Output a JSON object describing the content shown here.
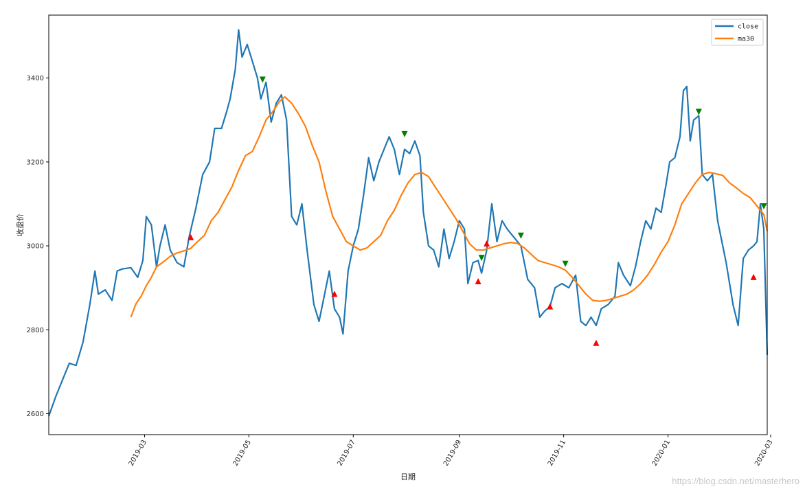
{
  "watermark": "https://blog.csdn.net/masterhero",
  "chart_data": {
    "type": "line",
    "xlabel": "日期",
    "ylabel": "收盘价",
    "xlim": [
      "2019-01-04",
      "2020-02-28"
    ],
    "ylim": [
      2550,
      3550
    ],
    "grid": false,
    "legend_position": "top-right",
    "x_ticks": [
      "2019-03",
      "2019-05",
      "2019-07",
      "2019-09",
      "2019-11",
      "2020-01",
      "2020-03"
    ],
    "y_ticks": [
      2600,
      2800,
      3000,
      3200,
      3400
    ],
    "colors": {
      "close": "#1f77b4",
      "ma30": "#ff7f0e",
      "buy": "#ff0000",
      "sell": "#008000"
    },
    "series": [
      {
        "name": "close",
        "points": [
          [
            "2019-01-04",
            2594
          ],
          [
            "2019-01-08",
            2640
          ],
          [
            "2019-01-12",
            2680
          ],
          [
            "2019-01-16",
            2720
          ],
          [
            "2019-01-20",
            2715
          ],
          [
            "2019-01-24",
            2770
          ],
          [
            "2019-01-28",
            2860
          ],
          [
            "2019-01-31",
            2940
          ],
          [
            "2019-02-02",
            2885
          ],
          [
            "2019-02-06",
            2895
          ],
          [
            "2019-02-10",
            2870
          ],
          [
            "2019-02-13",
            2940
          ],
          [
            "2019-02-16",
            2945
          ],
          [
            "2019-02-21",
            2948
          ],
          [
            "2019-02-25",
            2925
          ],
          [
            "2019-02-28",
            2965
          ],
          [
            "2019-03-02",
            3070
          ],
          [
            "2019-03-05",
            3050
          ],
          [
            "2019-03-08",
            2950
          ],
          [
            "2019-03-10",
            3000
          ],
          [
            "2019-03-13",
            3050
          ],
          [
            "2019-03-16",
            2990
          ],
          [
            "2019-03-20",
            2960
          ],
          [
            "2019-03-24",
            2950
          ],
          [
            "2019-03-27",
            3020
          ],
          [
            "2019-03-31",
            3090
          ],
          [
            "2019-04-04",
            3170
          ],
          [
            "2019-04-08",
            3200
          ],
          [
            "2019-04-11",
            3280
          ],
          [
            "2019-04-15",
            3280
          ],
          [
            "2019-04-18",
            3320
          ],
          [
            "2019-04-20",
            3350
          ],
          [
            "2019-04-23",
            3420
          ],
          [
            "2019-04-25",
            3515
          ],
          [
            "2019-04-27",
            3450
          ],
          [
            "2019-04-30",
            3480
          ],
          [
            "2019-05-03",
            3440
          ],
          [
            "2019-05-06",
            3400
          ],
          [
            "2019-05-08",
            3350
          ],
          [
            "2019-05-11",
            3390
          ],
          [
            "2019-05-14",
            3295
          ],
          [
            "2019-05-17",
            3340
          ],
          [
            "2019-05-20",
            3360
          ],
          [
            "2019-05-23",
            3300
          ],
          [
            "2019-05-26",
            3070
          ],
          [
            "2019-05-29",
            3050
          ],
          [
            "2019-06-01",
            3100
          ],
          [
            "2019-06-04",
            2990
          ],
          [
            "2019-06-08",
            2860
          ],
          [
            "2019-06-11",
            2820
          ],
          [
            "2019-06-14",
            2880
          ],
          [
            "2019-06-17",
            2940
          ],
          [
            "2019-06-20",
            2850
          ],
          [
            "2019-06-23",
            2830
          ],
          [
            "2019-06-25",
            2790
          ],
          [
            "2019-06-28",
            2940
          ],
          [
            "2019-07-01",
            3000
          ],
          [
            "2019-07-04",
            3040
          ],
          [
            "2019-07-07",
            3120
          ],
          [
            "2019-07-10",
            3210
          ],
          [
            "2019-07-13",
            3155
          ],
          [
            "2019-07-16",
            3200
          ],
          [
            "2019-07-19",
            3230
          ],
          [
            "2019-07-22",
            3260
          ],
          [
            "2019-07-25",
            3230
          ],
          [
            "2019-07-28",
            3170
          ],
          [
            "2019-07-31",
            3230
          ],
          [
            "2019-08-03",
            3220
          ],
          [
            "2019-08-06",
            3250
          ],
          [
            "2019-08-09",
            3215
          ],
          [
            "2019-08-11",
            3080
          ],
          [
            "2019-08-14",
            3000
          ],
          [
            "2019-08-17",
            2990
          ],
          [
            "2019-08-20",
            2950
          ],
          [
            "2019-08-23",
            3040
          ],
          [
            "2019-08-26",
            2970
          ],
          [
            "2019-08-29",
            3010
          ],
          [
            "2019-09-01",
            3060
          ],
          [
            "2019-09-04",
            3040
          ],
          [
            "2019-09-06",
            2910
          ],
          [
            "2019-09-09",
            2960
          ],
          [
            "2019-09-12",
            2965
          ],
          [
            "2019-09-14",
            2935
          ],
          [
            "2019-09-17",
            2990
          ],
          [
            "2019-09-20",
            3100
          ],
          [
            "2019-09-23",
            3010
          ],
          [
            "2019-09-26",
            3060
          ],
          [
            "2019-09-29",
            3040
          ],
          [
            "2019-10-03",
            3020
          ],
          [
            "2019-10-07",
            3000
          ],
          [
            "2019-10-11",
            2920
          ],
          [
            "2019-10-15",
            2900
          ],
          [
            "2019-10-18",
            2830
          ],
          [
            "2019-10-21",
            2845
          ],
          [
            "2019-10-24",
            2855
          ],
          [
            "2019-10-27",
            2900
          ],
          [
            "2019-10-31",
            2910
          ],
          [
            "2019-11-04",
            2900
          ],
          [
            "2019-11-08",
            2930
          ],
          [
            "2019-11-11",
            2820
          ],
          [
            "2019-11-14",
            2810
          ],
          [
            "2019-11-17",
            2830
          ],
          [
            "2019-11-20",
            2810
          ],
          [
            "2019-11-23",
            2850
          ],
          [
            "2019-11-27",
            2860
          ],
          [
            "2019-12-01",
            2880
          ],
          [
            "2019-12-03",
            2960
          ],
          [
            "2019-12-06",
            2930
          ],
          [
            "2019-12-10",
            2905
          ],
          [
            "2019-12-13",
            2950
          ],
          [
            "2019-12-16",
            3010
          ],
          [
            "2019-12-19",
            3060
          ],
          [
            "2019-12-22",
            3040
          ],
          [
            "2019-12-25",
            3090
          ],
          [
            "2019-12-28",
            3080
          ],
          [
            "2019-12-31",
            3150
          ],
          [
            "2020-01-02",
            3200
          ],
          [
            "2020-01-05",
            3210
          ],
          [
            "2020-01-08",
            3260
          ],
          [
            "2020-01-10",
            3370
          ],
          [
            "2020-01-12",
            3380
          ],
          [
            "2020-01-14",
            3250
          ],
          [
            "2020-01-16",
            3300
          ],
          [
            "2020-01-19",
            3310
          ],
          [
            "2020-01-21",
            3170
          ],
          [
            "2020-01-24",
            3155
          ],
          [
            "2020-01-27",
            3170
          ],
          [
            "2020-01-30",
            3060
          ],
          [
            "2020-02-04",
            2960
          ],
          [
            "2020-02-08",
            2860
          ],
          [
            "2020-02-11",
            2810
          ],
          [
            "2020-02-14",
            2970
          ],
          [
            "2020-02-17",
            2990
          ],
          [
            "2020-02-20",
            3000
          ],
          [
            "2020-02-22",
            3010
          ],
          [
            "2020-02-24",
            3100
          ],
          [
            "2020-02-26",
            3040
          ],
          [
            "2020-02-28",
            2740
          ]
        ]
      },
      {
        "name": "ma30",
        "points": [
          [
            "2019-02-21",
            2830
          ],
          [
            "2019-02-24",
            2862
          ],
          [
            "2019-02-27",
            2880
          ],
          [
            "2019-03-02",
            2905
          ],
          [
            "2019-03-05",
            2925
          ],
          [
            "2019-03-08",
            2950
          ],
          [
            "2019-03-12",
            2962
          ],
          [
            "2019-03-16",
            2975
          ],
          [
            "2019-03-20",
            2983
          ],
          [
            "2019-03-24",
            2988
          ],
          [
            "2019-03-28",
            2994
          ],
          [
            "2019-04-01",
            3010
          ],
          [
            "2019-04-05",
            3025
          ],
          [
            "2019-04-09",
            3060
          ],
          [
            "2019-04-13",
            3080
          ],
          [
            "2019-04-17",
            3110
          ],
          [
            "2019-04-21",
            3140
          ],
          [
            "2019-04-25",
            3180
          ],
          [
            "2019-04-29",
            3215
          ],
          [
            "2019-05-03",
            3225
          ],
          [
            "2019-05-07",
            3260
          ],
          [
            "2019-05-11",
            3300
          ],
          [
            "2019-05-15",
            3320
          ],
          [
            "2019-05-19",
            3345
          ],
          [
            "2019-05-22",
            3355
          ],
          [
            "2019-05-26",
            3340
          ],
          [
            "2019-05-30",
            3315
          ],
          [
            "2019-06-03",
            3285
          ],
          [
            "2019-06-07",
            3240
          ],
          [
            "2019-06-11",
            3200
          ],
          [
            "2019-06-15",
            3130
          ],
          [
            "2019-06-19",
            3070
          ],
          [
            "2019-06-23",
            3040
          ],
          [
            "2019-06-27",
            3010
          ],
          [
            "2019-07-01",
            3000
          ],
          [
            "2019-07-05",
            2990
          ],
          [
            "2019-07-09",
            2995
          ],
          [
            "2019-07-13",
            3010
          ],
          [
            "2019-07-17",
            3025
          ],
          [
            "2019-07-21",
            3060
          ],
          [
            "2019-07-25",
            3085
          ],
          [
            "2019-07-29",
            3120
          ],
          [
            "2019-08-02",
            3150
          ],
          [
            "2019-08-06",
            3170
          ],
          [
            "2019-08-10",
            3175
          ],
          [
            "2019-08-14",
            3165
          ],
          [
            "2019-08-18",
            3140
          ],
          [
            "2019-08-22",
            3115
          ],
          [
            "2019-08-26",
            3090
          ],
          [
            "2019-08-30",
            3065
          ],
          [
            "2019-09-03",
            3035
          ],
          [
            "2019-09-07",
            3005
          ],
          [
            "2019-09-11",
            2990
          ],
          [
            "2019-09-15",
            2990
          ],
          [
            "2019-09-19",
            2995
          ],
          [
            "2019-09-23",
            3000
          ],
          [
            "2019-09-27",
            3005
          ],
          [
            "2019-10-01",
            3008
          ],
          [
            "2019-10-05",
            3006
          ],
          [
            "2019-10-09",
            2995
          ],
          [
            "2019-10-13",
            2980
          ],
          [
            "2019-10-17",
            2965
          ],
          [
            "2019-10-21",
            2960
          ],
          [
            "2019-10-25",
            2955
          ],
          [
            "2019-10-29",
            2950
          ],
          [
            "2019-11-02",
            2942
          ],
          [
            "2019-11-06",
            2925
          ],
          [
            "2019-11-10",
            2905
          ],
          [
            "2019-11-14",
            2885
          ],
          [
            "2019-11-18",
            2870
          ],
          [
            "2019-11-22",
            2868
          ],
          [
            "2019-11-26",
            2870
          ],
          [
            "2019-11-30",
            2875
          ],
          [
            "2019-12-04",
            2880
          ],
          [
            "2019-12-08",
            2885
          ],
          [
            "2019-12-12",
            2895
          ],
          [
            "2019-12-16",
            2910
          ],
          [
            "2019-12-20",
            2930
          ],
          [
            "2019-12-24",
            2955
          ],
          [
            "2019-12-28",
            2985
          ],
          [
            "2020-01-01",
            3010
          ],
          [
            "2020-01-05",
            3050
          ],
          [
            "2020-01-09",
            3100
          ],
          [
            "2020-01-13",
            3125
          ],
          [
            "2020-01-17",
            3150
          ],
          [
            "2020-01-21",
            3170
          ],
          [
            "2020-01-25",
            3175
          ],
          [
            "2020-01-29",
            3172
          ],
          [
            "2020-02-02",
            3168
          ],
          [
            "2020-02-06",
            3150
          ],
          [
            "2020-02-10",
            3138
          ],
          [
            "2020-02-14",
            3125
          ],
          [
            "2020-02-18",
            3115
          ],
          [
            "2020-02-22",
            3095
          ],
          [
            "2020-02-26",
            3075
          ],
          [
            "2020-02-28",
            3035
          ]
        ]
      }
    ],
    "buy_markers": [
      [
        "2019-03-28",
        3020
      ],
      [
        "2019-06-20",
        2885
      ],
      [
        "2019-09-12",
        2915
      ],
      [
        "2019-09-17",
        3005
      ],
      [
        "2019-10-24",
        2855
      ],
      [
        "2019-11-20",
        2768
      ],
      [
        "2020-02-20",
        2925
      ]
    ],
    "sell_markers": [
      [
        "2019-05-09",
        3397
      ],
      [
        "2019-07-31",
        3267
      ],
      [
        "2019-09-14",
        2972
      ],
      [
        "2019-10-07",
        3025
      ],
      [
        "2019-11-02",
        2958
      ],
      [
        "2020-01-19",
        3320
      ],
      [
        "2020-02-26",
        3095
      ]
    ]
  }
}
